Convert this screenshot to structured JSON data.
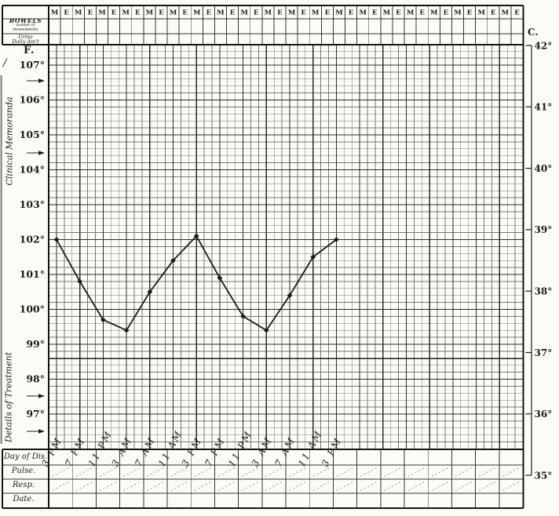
{
  "header_row": {
    "pattern": [
      "M",
      "E"
    ],
    "cell_count": 40
  },
  "side_boxes": {
    "bowels": {
      "line1": "BOWELS",
      "line2": "number of",
      "line3": "movements"
    },
    "urine": {
      "line1": "Urine",
      "line2": "Daily Am't"
    }
  },
  "left_margin": {
    "f_axis_label": "F.",
    "stray_mark": "/",
    "clinical_memoranda": "Clinical Memoranda",
    "details_of_treatment": "Details of Treatment"
  },
  "right_margin": {
    "c_axis_label": "C."
  },
  "bottom_rows": {
    "day_of_dis": "Day of Dis.",
    "pulse": "Pulse.",
    "resp": "Resp.",
    "date": "Date."
  },
  "icons": {
    "entry_arrow": "→"
  },
  "chart_data": {
    "type": "line",
    "x": [
      "3 PM",
      "7 PM",
      "11 PM",
      "3 AM",
      "7 AM",
      "11 AM",
      "3 PM",
      "7 PM",
      "11 PM",
      "3 AM",
      "7 AM",
      "11 AM",
      "3 PM"
    ],
    "series": [
      {
        "name": "temperature_F",
        "values": [
          102,
          100.8,
          99.7,
          99.4,
          100.5,
          101.4,
          102.1,
          100.9,
          99.8,
          99.4,
          100.4,
          101.5,
          102
        ]
      }
    ],
    "y_axis_fahrenheit": {
      "label": "F.",
      "tick_labels": [
        "107°",
        "106°",
        "105°",
        "104°",
        "103°",
        "102°",
        "101°",
        "100°",
        "99°",
        "98°",
        "97°"
      ],
      "tick_values": [
        107,
        106,
        105,
        104,
        103,
        102,
        101,
        100,
        99,
        98,
        97
      ]
    },
    "y_axis_celsius": {
      "label": "C.",
      "tick_labels": [
        "42°",
        "41°",
        "40°",
        "39°",
        "38°",
        "37°",
        "36°",
        "35°"
      ],
      "tick_values": [
        42,
        41,
        40,
        39,
        38,
        37,
        36,
        35
      ]
    },
    "normal_line_f": 98.6,
    "ylim_f": [
      96.9,
      107.6
    ],
    "grid": true,
    "legend_position": "none"
  },
  "colors": {
    "paper": "#fcfbf6",
    "ink": "#1b1b1b",
    "grid_minor": "#777777",
    "grid_major": "#2b2b2b",
    "heavy_border": "#141414",
    "hatch": "#8f8f8f",
    "handwriting": "#242424"
  }
}
